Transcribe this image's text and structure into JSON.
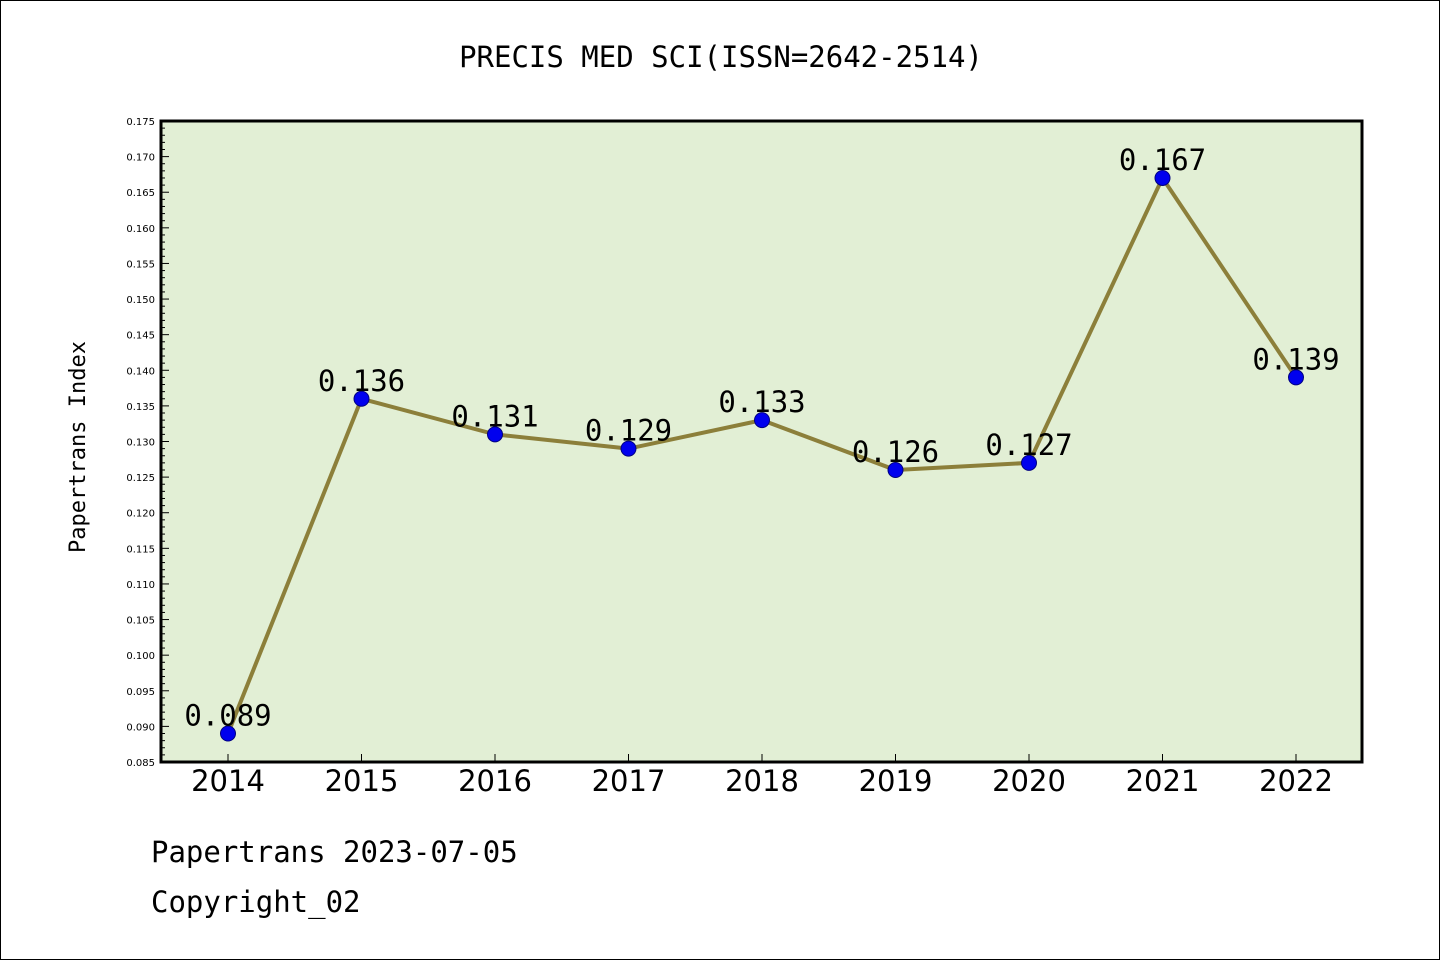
{
  "chart_data": {
    "type": "line",
    "title": "PRECIS MED SCI(ISSN=2642-2514)",
    "xlabel": "",
    "ylabel": "Papertrans Index",
    "categories": [
      "2014",
      "2015",
      "2016",
      "2017",
      "2018",
      "2019",
      "2020",
      "2021",
      "2022"
    ],
    "values": [
      0.089,
      0.136,
      0.131,
      0.129,
      0.133,
      0.126,
      0.127,
      0.167,
      0.139
    ],
    "data_labels": [
      "0.089",
      "0.136",
      "0.131",
      "0.129",
      "0.133",
      "0.126",
      "0.127",
      "0.167",
      "0.139"
    ],
    "ylim": [
      0.085,
      0.175
    ],
    "yticks": [
      "0.085",
      "0.090",
      "0.095",
      "0.100",
      "0.105",
      "0.110",
      "0.115",
      "0.120",
      "0.125",
      "0.130",
      "0.135",
      "0.140",
      "0.145",
      "0.150",
      "0.155",
      "0.160",
      "0.165",
      "0.170",
      "0.175"
    ],
    "grid": false,
    "legend": "none",
    "colors": {
      "plot_background": "#e2efd5",
      "line": "#8c7f3a",
      "marker": "#0000ee",
      "marker_edge": "#000080"
    }
  },
  "footer": {
    "date_line": "Papertrans 2023-07-05",
    "copyright_line": "Copyright_02"
  }
}
